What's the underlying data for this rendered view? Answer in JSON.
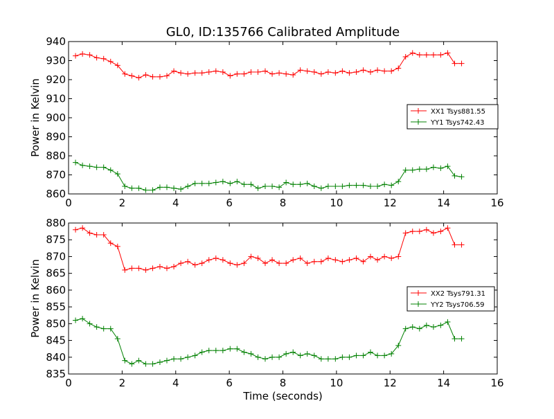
{
  "chart_data": [
    {
      "type": "line",
      "title": "GL0, ID:135766 Calibrated Amplitude",
      "xlabel": "",
      "ylabel": "Power in Kelvin",
      "xlim": [
        0,
        16
      ],
      "ylim": [
        860,
        940
      ],
      "xticks": [
        0,
        2,
        4,
        6,
        8,
        10,
        12,
        14,
        16
      ],
      "yticks": [
        860,
        870,
        880,
        890,
        900,
        910,
        920,
        930,
        940
      ],
      "legend_position": "center-right",
      "series": [
        {
          "name": "XX1 Tsys881.55",
          "color": "#ff0000",
          "marker": "plus",
          "x": [
            0.26,
            0.52,
            0.79,
            1.05,
            1.31,
            1.57,
            1.83,
            2.1,
            2.36,
            2.62,
            2.88,
            3.14,
            3.41,
            3.67,
            3.93,
            4.19,
            4.45,
            4.72,
            4.98,
            5.24,
            5.5,
            5.76,
            6.03,
            6.29,
            6.55,
            6.81,
            7.07,
            7.34,
            7.6,
            7.86,
            8.12,
            8.38,
            8.65,
            8.91,
            9.17,
            9.43,
            9.69,
            9.96,
            10.22,
            10.48,
            10.74,
            11.0,
            11.27,
            11.53,
            11.79,
            12.05,
            12.31,
            12.58,
            12.84,
            13.1,
            13.36,
            13.62,
            13.89,
            14.15,
            14.41,
            14.67
          ],
          "y": [
            932.5,
            933.5,
            933.0,
            931.5,
            931.0,
            929.5,
            927.5,
            923.0,
            922.0,
            921.0,
            922.5,
            921.5,
            921.5,
            922.0,
            924.5,
            923.5,
            923.0,
            923.5,
            923.5,
            924.0,
            924.5,
            924.0,
            922.0,
            923.0,
            923.0,
            924.0,
            924.0,
            924.5,
            923.0,
            923.5,
            923.0,
            922.5,
            925.0,
            924.5,
            924.0,
            923.0,
            924.0,
            923.5,
            924.5,
            923.5,
            924.0,
            925.0,
            924.0,
            925.0,
            924.5,
            924.5,
            926.0,
            932.0,
            934.0,
            933.0,
            933.0,
            933.0,
            933.0,
            934.0,
            928.5,
            928.5
          ]
        },
        {
          "name": "YY1 Tsys742.43",
          "color": "#008000",
          "marker": "plus",
          "x": [
            0.26,
            0.52,
            0.79,
            1.05,
            1.31,
            1.57,
            1.83,
            2.1,
            2.36,
            2.62,
            2.88,
            3.14,
            3.41,
            3.67,
            3.93,
            4.19,
            4.45,
            4.72,
            4.98,
            5.24,
            5.5,
            5.76,
            6.03,
            6.29,
            6.55,
            6.81,
            7.07,
            7.34,
            7.6,
            7.86,
            8.12,
            8.38,
            8.65,
            8.91,
            9.17,
            9.43,
            9.69,
            9.96,
            10.22,
            10.48,
            10.74,
            11.0,
            11.27,
            11.53,
            11.79,
            12.05,
            12.31,
            12.58,
            12.84,
            13.1,
            13.36,
            13.62,
            13.89,
            14.15,
            14.41,
            14.67
          ],
          "y": [
            876.5,
            875.0,
            874.5,
            874.0,
            874.0,
            872.5,
            870.5,
            864.0,
            863.0,
            863.0,
            862.0,
            862.0,
            863.5,
            863.5,
            863.0,
            862.5,
            864.0,
            865.5,
            865.5,
            865.5,
            866.0,
            866.5,
            865.5,
            866.5,
            865.0,
            865.0,
            863.0,
            864.0,
            864.0,
            863.5,
            866.0,
            865.0,
            865.0,
            865.5,
            864.0,
            863.0,
            864.0,
            864.0,
            864.0,
            864.5,
            864.5,
            864.5,
            864.0,
            864.0,
            865.0,
            864.5,
            866.5,
            872.5,
            872.5,
            873.0,
            873.0,
            874.0,
            873.5,
            874.5,
            869.5,
            869.0
          ]
        }
      ]
    },
    {
      "type": "line",
      "title": "",
      "xlabel": "Time (seconds)",
      "ylabel": "Power in Kelvin",
      "xlim": [
        0,
        16
      ],
      "ylim": [
        835,
        880
      ],
      "xticks": [
        0,
        2,
        4,
        6,
        8,
        10,
        12,
        14,
        16
      ],
      "yticks": [
        835,
        840,
        845,
        850,
        855,
        860,
        865,
        870,
        875,
        880
      ],
      "legend_position": "center-right",
      "series": [
        {
          "name": "XX2 Tsys791.31",
          "color": "#ff0000",
          "marker": "plus",
          "x": [
            0.26,
            0.52,
            0.79,
            1.05,
            1.31,
            1.57,
            1.83,
            2.1,
            2.36,
            2.62,
            2.88,
            3.14,
            3.41,
            3.67,
            3.93,
            4.19,
            4.45,
            4.72,
            4.98,
            5.24,
            5.5,
            5.76,
            6.03,
            6.29,
            6.55,
            6.81,
            7.07,
            7.34,
            7.6,
            7.86,
            8.12,
            8.38,
            8.65,
            8.91,
            9.17,
            9.43,
            9.69,
            9.96,
            10.22,
            10.48,
            10.74,
            11.0,
            11.27,
            11.53,
            11.79,
            12.05,
            12.31,
            12.58,
            12.84,
            13.1,
            13.36,
            13.62,
            13.89,
            14.15,
            14.41,
            14.67
          ],
          "y": [
            878.0,
            878.5,
            877.0,
            876.5,
            876.5,
            874.0,
            873.0,
            866.0,
            866.5,
            866.5,
            866.0,
            866.5,
            867.0,
            866.5,
            867.0,
            868.0,
            868.5,
            867.5,
            868.0,
            869.0,
            869.5,
            869.0,
            868.0,
            867.5,
            868.0,
            870.0,
            869.5,
            868.0,
            869.0,
            868.0,
            868.0,
            869.0,
            869.5,
            868.0,
            868.5,
            868.5,
            869.5,
            869.0,
            868.5,
            869.0,
            869.5,
            868.5,
            870.0,
            869.0,
            870.0,
            869.5,
            870.0,
            877.0,
            877.5,
            877.5,
            878.0,
            877.0,
            877.5,
            878.5,
            873.5,
            873.5
          ]
        },
        {
          "name": "YY2 Tsys706.59",
          "color": "#008000",
          "marker": "plus",
          "x": [
            0.26,
            0.52,
            0.79,
            1.05,
            1.31,
            1.57,
            1.83,
            2.1,
            2.36,
            2.62,
            2.88,
            3.14,
            3.41,
            3.67,
            3.93,
            4.19,
            4.45,
            4.72,
            4.98,
            5.24,
            5.5,
            5.76,
            6.03,
            6.29,
            6.55,
            6.81,
            7.07,
            7.34,
            7.6,
            7.86,
            8.12,
            8.38,
            8.65,
            8.91,
            9.17,
            9.43,
            9.69,
            9.96,
            10.22,
            10.48,
            10.74,
            11.0,
            11.27,
            11.53,
            11.79,
            12.05,
            12.31,
            12.58,
            12.84,
            13.1,
            13.36,
            13.62,
            13.89,
            14.15,
            14.41,
            14.67
          ],
          "y": [
            851.0,
            851.5,
            850.0,
            849.0,
            848.5,
            848.5,
            845.5,
            839.0,
            838.0,
            839.0,
            838.0,
            838.0,
            838.5,
            839.0,
            839.5,
            839.5,
            840.0,
            840.5,
            841.5,
            842.0,
            842.0,
            842.0,
            842.5,
            842.5,
            841.5,
            841.0,
            840.0,
            839.5,
            840.0,
            840.0,
            841.0,
            841.5,
            840.5,
            841.0,
            840.5,
            839.5,
            839.5,
            839.5,
            840.0,
            840.0,
            840.5,
            840.5,
            841.5,
            840.5,
            840.5,
            841.0,
            843.5,
            848.5,
            849.0,
            848.5,
            849.5,
            849.0,
            849.5,
            850.5,
            845.5,
            845.5
          ]
        }
      ]
    }
  ]
}
